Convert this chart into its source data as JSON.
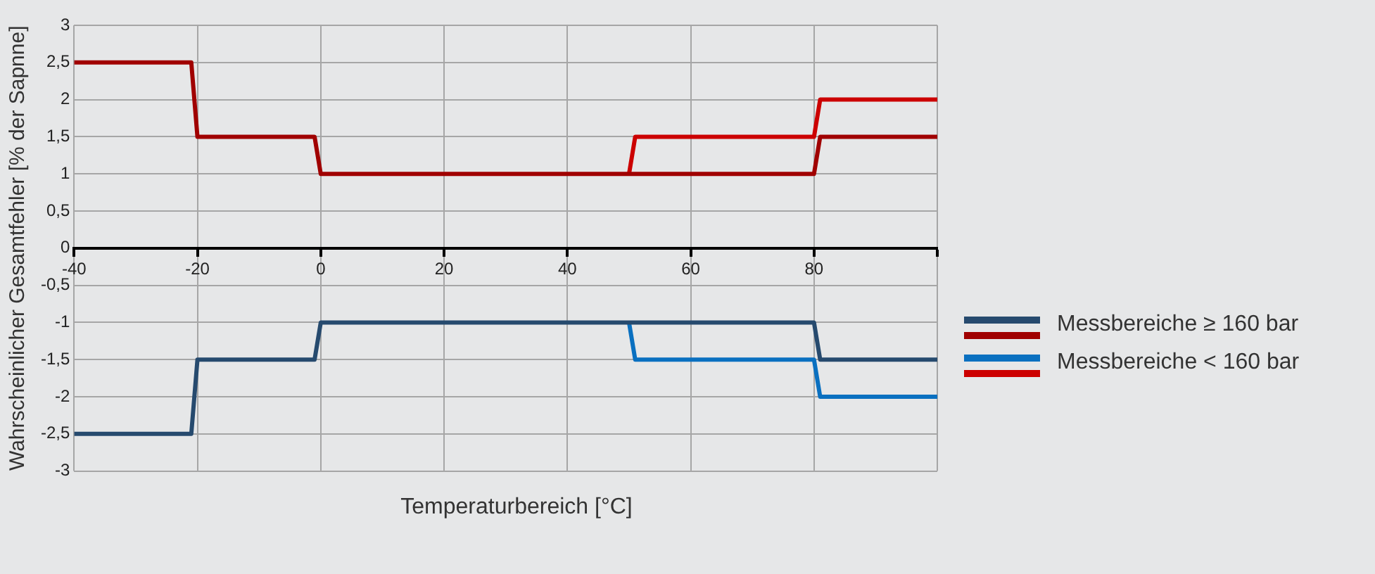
{
  "chart_data": {
    "type": "line",
    "xlabel": "Temperaturbereich [°C]",
    "ylabel": "Wahrscheinlicher Gesamtfehler [% der Sapnne]",
    "xlim": [
      -40,
      100
    ],
    "xticks": [
      -40,
      -20,
      0,
      20,
      40,
      60,
      80,
      {
        "value": 100,
        "label": null
      }
    ],
    "ylim": [
      -3,
      3
    ],
    "yticks": [
      -3,
      {
        "value": -2.5,
        "label": "-2,5"
      },
      -2,
      {
        "value": -1.5,
        "label": "-1,5"
      },
      -1,
      {
        "value": -0.5,
        "label": "-0,5"
      },
      0,
      {
        "value": 0.5,
        "label": "0,5"
      },
      1,
      {
        "value": 1.5,
        "label": "1,5"
      },
      2,
      {
        "value": 2.5,
        "label": "2,5"
      },
      3
    ],
    "grid": true,
    "legend": "right",
    "marker": "none",
    "line_style": "solid",
    "series": [
      {
        "name": "Messbereiche ≥ 160 bar",
        "color": "#264a6e",
        "x": [
          -40,
          -21,
          -20,
          -1,
          0,
          80,
          81,
          100
        ],
        "values": [
          -2.5,
          -2.5,
          -1.5,
          -1.5,
          -1,
          -1,
          -1.5,
          -1.5
        ]
      },
      {
        "color": "#a00000",
        "x": [
          -40,
          -21,
          -20,
          -1,
          0,
          80,
          81,
          100
        ],
        "values": [
          2.5,
          2.5,
          1.5,
          1.5,
          1,
          1,
          1.5,
          1.5
        ]
      },
      {
        "name": "Messbereiche < 160 bar",
        "color": "#0a70c0",
        "x": [
          50,
          51,
          80,
          81,
          100
        ],
        "values": [
          -1,
          -1.5,
          -1.5,
          -2,
          -2
        ]
      },
      {
        "color": "#cc0000",
        "x": [
          50,
          51,
          80,
          81,
          100
        ],
        "values": [
          1,
          1.5,
          1.5,
          2,
          2
        ]
      }
    ]
  }
}
